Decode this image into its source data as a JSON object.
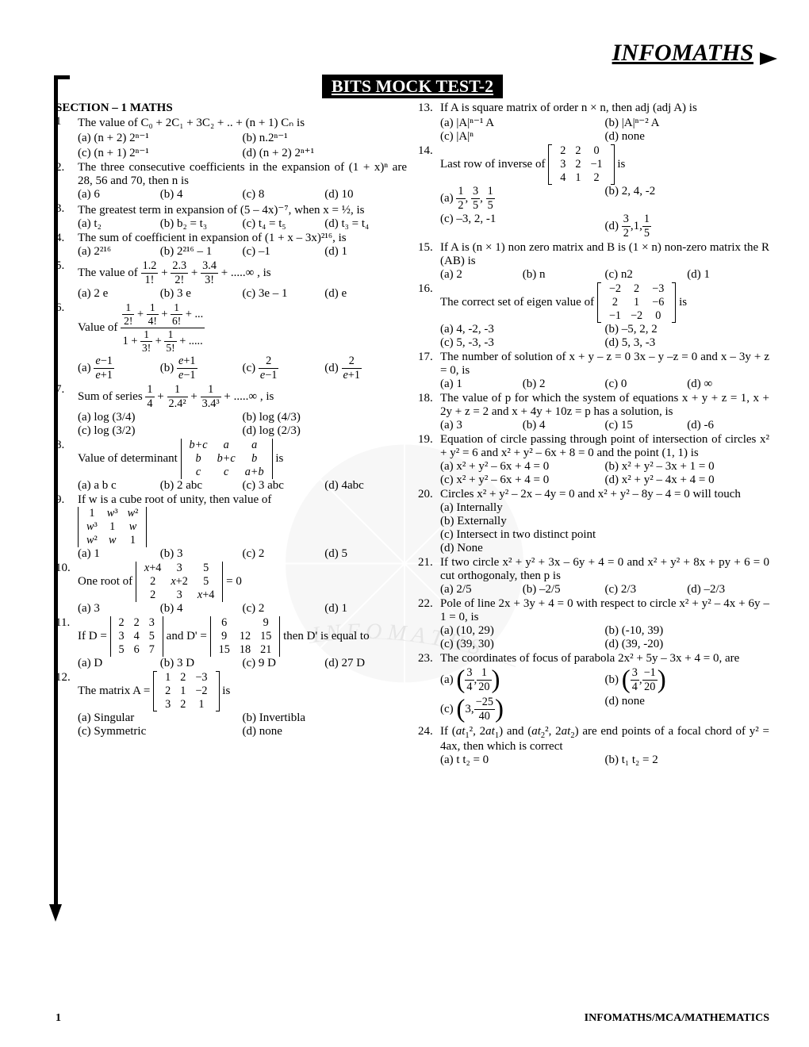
{
  "header": {
    "brand": "INFOMATHS"
  },
  "title": "BITS MOCK TEST-2",
  "section_head": "SECTION – 1 MATHS",
  "footer": {
    "page": "1",
    "tag": "INFOMATHS/MCA/MATHEMATICS"
  },
  "watermark": {
    "label": "INFOMATHS",
    "color": "#d9d9d9",
    "text_color": "#9a9a9a"
  },
  "left": [
    {
      "n": "1",
      "q": "The value of C₀ + 2C₁ + 3C₂ + .. + (n + 1) Cₙ is",
      "opts": [
        "(a) (n + 2) 2ⁿ⁻¹",
        "(b) n.2ⁿ⁻¹",
        "(c) (n + 1) 2ⁿ⁻¹",
        "(d) (n + 2) 2ⁿ⁺¹"
      ],
      "cols": 2
    },
    {
      "n": "2.",
      "q": "The three consecutive coefficients in the expansion of (1 + x)ⁿ are 28, 56 and 70, then n is",
      "opts": [
        "(a) 6",
        "(b) 4",
        "(c) 8",
        "(d) 10"
      ],
      "cols": 4
    },
    {
      "n": "3.",
      "q": "The greatest term in expansion of (5 – 4x)⁻⁷, when x = ½, is",
      "opts": [
        "(a) t₂",
        "(b) b₂ = t₃",
        "(c) t₄ = t₅",
        "(d) t₃ = t₄"
      ],
      "cols": 4
    },
    {
      "n": "4.",
      "q": "The sum of coefficient in expansion of (1 + x – 3x)²¹⁶, is",
      "opts": [
        "(a) 2²¹⁶",
        "(b) 2²¹⁶ – 1",
        "(c) –1",
        "(d) 1"
      ],
      "cols": 4
    },
    {
      "n": "5.",
      "q_html": "The value of <span class='frac'><span class='num'>1.2</span><span class='den'>1!</span></span> + <span class='frac'><span class='num'>2.3</span><span class='den'>2!</span></span> + <span class='frac'><span class='num'>3.4</span><span class='den'>3!</span></span> + .....∞ , is",
      "opts": [
        "(a) 2 e",
        "(b) 3 e",
        "(c) 3e – 1",
        "(d) e"
      ],
      "cols": 4
    },
    {
      "n": "6.",
      "q_html": "Value of <span class='frac'><span class='num'><span class='frac'><span class='num'>1</span><span class='den'>2!</span></span> + <span class='frac'><span class='num'>1</span><span class='den'>4!</span></span> + <span class='frac'><span class='num'>1</span><span class='den'>6!</span></span> + ...</span><span class='den'>1 + <span class='frac'><span class='num'>1</span><span class='den'>3!</span></span> + <span class='frac'><span class='num'>1</span><span class='den'>5!</span></span> + .....</span></span>",
      "opts_html": [
        "(a) <span class='frac'><span class='num'><i>e</i>−1</span><span class='den'><i>e</i>+1</span></span>",
        "(b) <span class='frac'><span class='num'><i>e</i>+1</span><span class='den'><i>e</i>−1</span></span>",
        "(c) <span class='frac'><span class='num'>2</span><span class='den'><i>e</i>−1</span></span>",
        "(d) <span class='frac'><span class='num'>2</span><span class='den'><i>e</i>+1</span></span>"
      ],
      "cols": 4
    },
    {
      "n": "7.",
      "q_html": "Sum of series <span class='frac'><span class='num'>1</span><span class='den'>4</span></span> + <span class='frac'><span class='num'>1</span><span class='den'>2.4²</span></span> + <span class='frac'><span class='num'>1</span><span class='den'>3.4³</span></span> + .....∞ , is",
      "opts": [
        "(a) log (3/4)",
        "(b) log (4/3)",
        "(c) log (3/2)",
        "(d) log (2/3)"
      ],
      "cols": 2
    },
    {
      "n": "8.",
      "q_html": "Value of determinant <span class='matrix'><span class='det-l'></span><table><tr><td><i>b+c</i></td><td><i>a</i></td><td><i>a</i></td></tr><tr><td><i>b</i></td><td><i>b+c</i></td><td><i>b</i></td></tr><tr><td><i>c</i></td><td><i>c</i></td><td><i>a+b</i></td></tr></table><span class='det-r'></span></span> is",
      "opts": [
        "(a) a b c",
        "(b) 2 abc",
        "(c) 3 abc",
        "(d) 4abc"
      ],
      "cols": 4
    },
    {
      "n": "9.",
      "q_html": "If w is a cube root of unity, then value of<br><span class='matrix'><span class='det-l'></span><table><tr><td>1</td><td><i>w</i>³</td><td><i>w</i>²</td></tr><tr><td><i>w</i>³</td><td>1</td><td><i>w</i></td></tr><tr><td><i>w</i>²</td><td><i>w</i></td><td>1</td></tr></table><span class='det-r'></span></span>",
      "opts": [
        "(a) 1",
        "(b) 3",
        "(c) 2",
        "(d) 5"
      ],
      "cols": 4
    },
    {
      "n": "10.",
      "q_html": "One root of <span class='matrix'><span class='det-l'></span><table><tr><td><i>x</i>+4</td><td>3</td><td>5</td></tr><tr><td>2</td><td><i>x</i>+2</td><td>5</td></tr><tr><td>2</td><td>3</td><td><i>x</i>+4</td></tr></table><span class='det-r'></span></span> = 0",
      "opts": [
        "(a) 3",
        "(b) 4",
        "(c) 2",
        "(d) 1"
      ],
      "cols": 4
    },
    {
      "n": "11.",
      "q_html": "If D = <span class='matrix'><span class='det-l'></span><table><tr><td>2</td><td>2</td><td>3</td></tr><tr><td>3</td><td>4</td><td>5</td></tr><tr><td>5</td><td>6</td><td>7</td></tr></table><span class='det-r'></span></span> and D' = <span class='matrix'><span class='det-l'></span><table><tr><td>6</td><td></td><td>9</td></tr><tr><td>9</td><td>12</td><td>15</td></tr><tr><td>15</td><td>18</td><td>21</td></tr></table><span class='det-r'></span></span> then D' is equal to",
      "opts": [
        "(a) D",
        "(b) 3 D",
        "(c) 9 D",
        "(d) 27 D"
      ],
      "cols": 4
    },
    {
      "n": "12.",
      "q_html": "The matrix A = <span class='matrix'><span class='br-l'></span><table><tr><td>1</td><td>2</td><td>−3</td></tr><tr><td>2</td><td>1</td><td>−2</td></tr><tr><td>3</td><td>2</td><td>1</td></tr></table><span class='br-r'></span></span> is",
      "opts": [
        "(a) Singular",
        "(b) Invertibla",
        "(c) Symmetric",
        "(d) none"
      ],
      "cols": 2
    }
  ],
  "right": [
    {
      "n": "13.",
      "q": "If A is square matrix of order n × n, then adj (adj A) is",
      "opts": [
        "(a) |A|ⁿ⁻¹ A",
        "(b) |A|ⁿ⁻² A",
        "(c) |A|ⁿ",
        "(d) none"
      ],
      "cols": 2
    },
    {
      "n": "14.",
      "q_html": "Last row of inverse of <span class='matrix'><span class='br-l'></span><table><tr><td>2</td><td>2</td><td>0</td></tr><tr><td>3</td><td>2</td><td>−1</td></tr><tr><td>4</td><td>1</td><td>2</td></tr></table><span class='br-r'></span></span> is",
      "opts_html": [
        "(a) <span class='frac'><span class='num'>1</span><span class='den'>2</span></span>, <span class='frac'><span class='num'>3</span><span class='den'>5</span></span>, <span class='frac'><span class='num'>1</span><span class='den'>5</span></span>",
        "(b) 2, 4, -2",
        "(c) –3, 2, -1",
        "(d) <span class='frac'><span class='num'>3</span><span class='den'>2</span></span>,1,<span class='frac'><span class='num'>1</span><span class='den'>5</span></span>"
      ],
      "cols": 2
    },
    {
      "n": "15.",
      "q": "If A is (n × 1) non zero matrix and B is (1 × n) non-zero matrix the R (AB) is",
      "opts": [
        "(a) 2",
        "(b) n",
        "(c) n2",
        "(d) 1"
      ],
      "cols": 4
    },
    {
      "n": "16.",
      "q_html": "The correct set of eigen value of <span class='matrix'><span class='br-l'></span><table><tr><td>−2</td><td>2</td><td>−3</td></tr><tr><td>2</td><td>1</td><td>−6</td></tr><tr><td>−1</td><td>−2</td><td>0</td></tr></table><span class='br-r'></span></span> is",
      "opts": [
        "(a) 4, -2, -3",
        "(b) –5, 2, 2",
        "(c) 5, -3, -3",
        "(d) 5, 3, -3"
      ],
      "cols": 2
    },
    {
      "n": "17.",
      "q": "The number of solution of x + y – z = 0 3x – y –z = 0 and x – 3y + z = 0, is",
      "opts": [
        "(a) 1",
        "(b) 2",
        "(c) 0",
        "(d) ∞"
      ],
      "cols": 4
    },
    {
      "n": "18.",
      "q": "The value of p for which the system of equations x + y + z = 1, x + 2y + z = 2 and x + 4y + 10z = p has a solution, is",
      "opts": [
        "(a) 3",
        "(b) 4",
        "(c) 15",
        "(d) -6"
      ],
      "cols": 4
    },
    {
      "n": "19.",
      "q": "Equation of circle passing through point of intersection of circles x² + y² = 6 and x² + y² – 6x + 8 = 0 and the point (1, 1) is",
      "opts": [
        "(a) x² + y² – 6x + 4 = 0",
        "(b) x² + y² – 3x + 1 = 0",
        "(c) x² + y² – 6x + 4 = 0",
        "(d) x² + y² – 4x + 4 = 0"
      ],
      "cols": 2
    },
    {
      "n": "20.",
      "q": "Circles x² + y² – 2x – 4y = 0 and x² + y² – 8y – 4 = 0 will touch",
      "opts": [
        "(a) Internally",
        "(b) Externally",
        "(c) Intersect in two distinct point",
        "(d) None"
      ],
      "cols": 1
    },
    {
      "n": "21.",
      "q": "If two circle x² + y² + 3x – 6y + 4 = 0 and x² + y² + 8x + py + 6 = 0 cut orthogonaly, then p is",
      "opts": [
        "(a) 2/5",
        "(b) –2/5",
        "(c) 2/3",
        "(d) –2/3"
      ],
      "cols": 4
    },
    {
      "n": "22.",
      "q": "Pole of line 2x + 3y + 4 = 0 with respect to circle x² + y² – 4x + 6y – 1 = 0, is",
      "opts": [
        "(a) (10, 29)",
        "(b) (-10, 39)",
        "(c) (39, 30)",
        "(d) (39, -20)"
      ],
      "cols": 2
    },
    {
      "n": "23.",
      "q": "The coordinates of focus of parabola 2x² + 5y – 3x + 4 = 0, are",
      "opts_html": [
        "(a) <span class='paren'><span class='frac'><span class='num'>3</span><span class='den'>4</span></span>, <span class='frac'><span class='num'>1</span><span class='den'>20</span></span></span>",
        "(b) <span class='paren'><span class='frac'><span class='num'>3</span><span class='den'>4</span></span>, <span class='frac'><span class='num'>−1</span><span class='den'>20</span></span></span>",
        "(c) <span class='paren'>3, <span class='frac'><span class='num'>−25</span><span class='den'>40</span></span></span>",
        "(d) none"
      ],
      "cols": 2
    },
    {
      "n": "24.",
      "q_html": "If (<i>at</i><sub>1</sub>², 2<i>at</i><sub>1</sub>) and (<i>at</i><sub>2</sub>², 2<i>at</i><sub>2</sub>) are end points of a focal chord of y² = 4ax, then which is correct",
      "opts": [
        "(a) t t₂ = 0",
        "(b) t₁ t₂ = 2"
      ],
      "cols": 2
    }
  ]
}
